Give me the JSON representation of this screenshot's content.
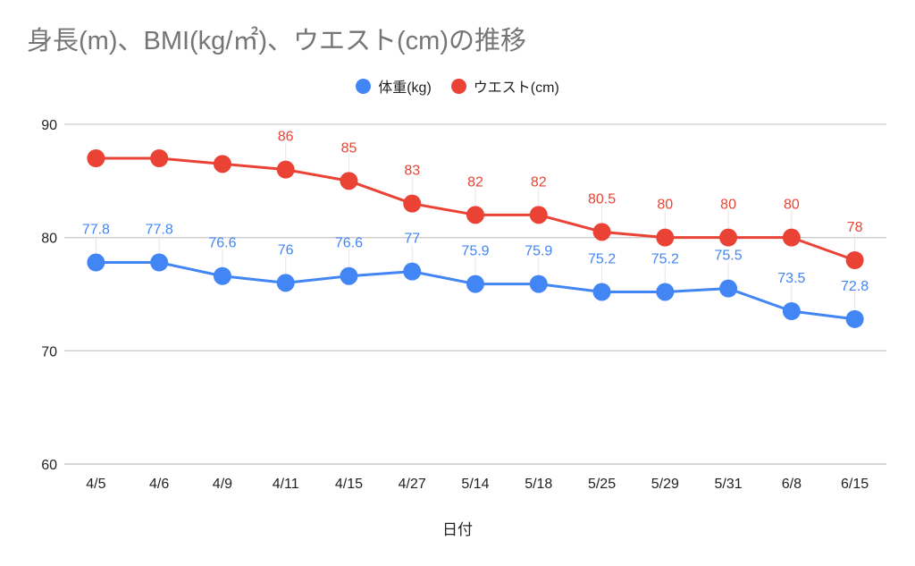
{
  "chart_data": {
    "type": "line",
    "title": "身長(m)、BMI(kg/㎡)、ウエスト(cm)の推移",
    "xlabel": "日付",
    "ylabel": "",
    "ylim": [
      60,
      90
    ],
    "yticks": [
      60,
      70,
      80,
      90
    ],
    "grid": true,
    "legend_position": "top",
    "categories": [
      "4/5",
      "4/6",
      "4/9",
      "4/11",
      "4/15",
      "4/27",
      "5/14",
      "5/18",
      "5/25",
      "5/29",
      "5/31",
      "6/8",
      "6/15"
    ],
    "series": [
      {
        "name": "体重(kg)",
        "color": "#4285f4",
        "values": [
          77.8,
          77.8,
          76.6,
          76,
          76.6,
          77,
          75.9,
          75.9,
          75.2,
          75.2,
          75.5,
          73.5,
          72.8
        ],
        "labels": [
          "77.8",
          "77.8",
          "76.6",
          "76",
          "76.6",
          "77",
          "75.9",
          "75.9",
          "75.2",
          "75.2",
          "75.5",
          "73.5",
          "72.8"
        ]
      },
      {
        "name": "ウエスト(cm)",
        "color": "#ea4335",
        "values": [
          87,
          87,
          86.5,
          86,
          85,
          83,
          82,
          82,
          80.5,
          80,
          80,
          80,
          78
        ],
        "labels": [
          "",
          "",
          "",
          "86",
          "85",
          "83",
          "82",
          "82",
          "80.5",
          "80",
          "80",
          "80",
          "78"
        ]
      }
    ]
  }
}
